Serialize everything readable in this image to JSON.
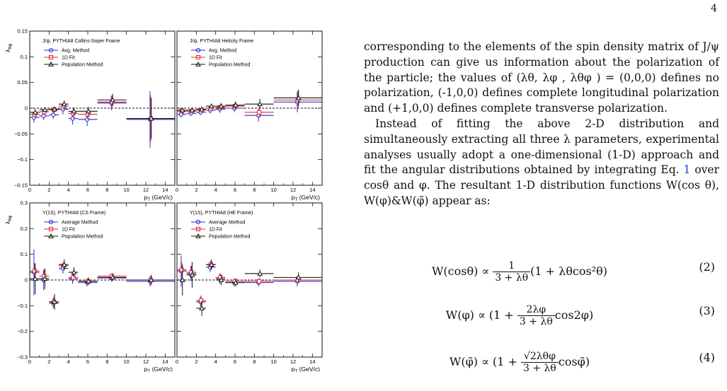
{
  "page_number": "4",
  "figure": {
    "axis": {
      "xlabel": "p",
      "xlabel_sub": "T",
      "xlabel_unit": "(GeV/c)",
      "x_ticks": [
        "0",
        "2",
        "4",
        "6",
        "8",
        "10",
        "12",
        "14"
      ],
      "ylabel": "λ",
      "ylabel_sub": "θφ"
    },
    "marker_colors": {
      "avg": "#1f2bd6",
      "fit": "#e3262d",
      "pop": "#111111"
    },
    "panels": [
      {
        "id": "jpsi-cs",
        "title": "J/ψ, PYTHIA8   Collins-Soper Frame",
        "legend": [
          "Avg. Method",
          "1D Fit",
          "Population Method"
        ],
        "y_ticks": [
          "0.15",
          "0.1",
          "0.05",
          "0",
          "−0.05",
          "−0.1",
          "−0.15"
        ],
        "ylim": [
          -0.15,
          0.15
        ]
      },
      {
        "id": "jpsi-hx",
        "title": "J/ψ, PYTHIA8   Helicity Frame",
        "legend": [
          "Avg. Method",
          "1D Fit",
          "Population Method"
        ],
        "y_ticks": [],
        "ylim": [
          -0.15,
          0.15
        ]
      },
      {
        "id": "ups-cs",
        "title": "Υ(1S), PYTHIA8  (CS Frame)",
        "legend": [
          "Average Method",
          "1D Fit",
          "Population Method"
        ],
        "y_ticks": [
          "0.3",
          "0.2",
          "0.1",
          "0",
          "−0.1",
          "−0.2",
          "−0.3"
        ],
        "ylim": [
          -0.3,
          0.3
        ]
      },
      {
        "id": "ups-he",
        "title": "Υ(1S), PYTHIA8  (HE Frame)",
        "legend": [
          "Average Method",
          "1D Fit",
          "Population Method"
        ],
        "y_ticks": [],
        "ylim": [
          -0.3,
          0.3
        ]
      }
    ]
  },
  "chart_data": [
    {
      "type": "scatter",
      "title": "J/ψ, PYTHIA8   Collins-Soper Frame",
      "xlabel": "pT (GeV/c)",
      "ylabel": "λθφ",
      "xlim": [
        0,
        15
      ],
      "ylim": [
        -0.15,
        0.15
      ],
      "x": [
        0.5,
        1.5,
        2.5,
        3.5,
        4.5,
        6,
        8.5,
        12.5
      ],
      "xerr": [
        0.5,
        0.5,
        0.5,
        0.5,
        0.5,
        1,
        1.5,
        2.5
      ],
      "series": [
        {
          "name": "Avg. Method",
          "y": [
            -0.018,
            -0.015,
            -0.013,
            -0.002,
            -0.02,
            -0.022,
            0.01,
            -0.022
          ],
          "yerr": [
            0.01,
            0.008,
            0.008,
            0.01,
            0.012,
            0.013,
            0.014,
            0.055
          ]
        },
        {
          "name": "1D Fit",
          "y": [
            -0.012,
            -0.007,
            -0.003,
            0.004,
            -0.01,
            -0.012,
            0.012,
            -0.02
          ],
          "yerr": [
            0.007,
            0.006,
            0.006,
            0.008,
            0.01,
            0.011,
            0.013,
            0.045
          ]
        },
        {
          "name": "Population Method",
          "y": [
            -0.008,
            -0.003,
            -0.002,
            0.008,
            -0.006,
            -0.006,
            0.016,
            -0.02
          ],
          "yerr": [
            0.006,
            0.005,
            0.005,
            0.007,
            0.008,
            0.009,
            0.012,
            0.04
          ]
        }
      ]
    },
    {
      "type": "scatter",
      "title": "J/ψ, PYTHIA8   Helicity Frame",
      "xlabel": "pT (GeV/c)",
      "ylabel": "λθφ",
      "xlim": [
        0,
        15
      ],
      "ylim": [
        -0.15,
        0.15
      ],
      "x": [
        0.5,
        1.5,
        2.5,
        3.5,
        4.5,
        6,
        8.5,
        12.5
      ],
      "xerr": [
        0.5,
        0.5,
        0.5,
        0.5,
        0.5,
        1,
        1.5,
        2.5
      ],
      "series": [
        {
          "name": "Avg. Method",
          "y": [
            -0.012,
            -0.01,
            -0.008,
            -0.004,
            -0.002,
            0.0,
            -0.014,
            0.012
          ],
          "yerr": [
            0.006,
            0.005,
            0.005,
            0.006,
            0.007,
            0.008,
            0.012,
            0.02
          ]
        },
        {
          "name": "1D Fit",
          "y": [
            -0.006,
            -0.006,
            -0.004,
            0.0,
            0.002,
            0.004,
            -0.008,
            0.016
          ],
          "yerr": [
            0.005,
            0.004,
            0.004,
            0.005,
            0.006,
            0.007,
            0.01,
            0.018
          ]
        },
        {
          "name": "Population Method",
          "y": [
            -0.004,
            -0.004,
            -0.002,
            0.004,
            0.004,
            0.006,
            0.008,
            0.02
          ],
          "yerr": [
            0.005,
            0.004,
            0.004,
            0.005,
            0.006,
            0.007,
            0.01,
            0.016
          ]
        }
      ]
    },
    {
      "type": "scatter",
      "title": "Υ(1S), PYTHIA8  (CS Frame)",
      "xlabel": "pT (GeV/c)",
      "ylabel": "λθφ",
      "xlim": [
        0,
        15
      ],
      "ylim": [
        -0.3,
        0.3
      ],
      "x": [
        0.5,
        1.5,
        2.5,
        3.5,
        4.5,
        6,
        8.5,
        12.5
      ],
      "xerr": [
        0.5,
        0.5,
        0.5,
        0.5,
        0.5,
        1,
        1.5,
        2.5
      ],
      "series": [
        {
          "name": "Average Method",
          "y": [
            0.03,
            0.0,
            -0.09,
            0.045,
            0.005,
            -0.01,
            0.008,
            -0.005
          ],
          "yerr": [
            0.09,
            0.04,
            0.02,
            0.02,
            0.02,
            0.015,
            0.015,
            0.02
          ]
        },
        {
          "name": "1D Fit",
          "y": [
            0.035,
            0.015,
            -0.085,
            0.055,
            0.01,
            -0.005,
            0.015,
            0.0
          ],
          "yerr": [
            0.03,
            0.025,
            0.02,
            0.015,
            0.015,
            0.012,
            0.012,
            0.015
          ]
        },
        {
          "name": "Population Method",
          "y": [
            0.005,
            0.005,
            -0.085,
            0.06,
            0.03,
            -0.005,
            0.01,
            0.0
          ],
          "yerr": [
            0.06,
            0.04,
            0.03,
            0.02,
            0.02,
            0.015,
            0.015,
            0.02
          ]
        }
      ]
    },
    {
      "type": "scatter",
      "title": "Υ(1S), PYTHIA8  (HE Frame)",
      "xlabel": "pT (GeV/c)",
      "ylabel": "λθφ",
      "xlim": [
        0,
        15
      ],
      "ylim": [
        -0.3,
        0.3
      ],
      "x": [
        0.5,
        1.5,
        2.5,
        3.5,
        4.5,
        6,
        8.5,
        12.5
      ],
      "xerr": [
        0.5,
        0.5,
        0.5,
        0.5,
        0.5,
        1,
        1.5,
        2.5
      ],
      "series": [
        {
          "name": "Average Method",
          "y": [
            0.035,
            0.025,
            -0.085,
            0.05,
            0.005,
            -0.01,
            -0.01,
            -0.005
          ],
          "yerr": [
            0.06,
            0.03,
            0.02,
            0.02,
            0.02,
            0.015,
            0.015,
            0.02
          ]
        },
        {
          "name": "1D Fit",
          "y": [
            0.04,
            0.03,
            -0.08,
            0.06,
            0.01,
            -0.005,
            -0.005,
            0.0
          ],
          "yerr": [
            0.03,
            0.025,
            0.02,
            0.015,
            0.015,
            0.012,
            0.012,
            0.015
          ]
        },
        {
          "name": "Population Method",
          "y": [
            0.0,
            0.02,
            -0.11,
            0.06,
            0.0,
            -0.01,
            0.025,
            0.01
          ],
          "yerr": [
            0.06,
            0.05,
            0.03,
            0.02,
            0.02,
            0.015,
            0.015,
            0.02
          ]
        }
      ]
    }
  ],
  "text": {
    "p1": "corresponding to the elements of the spin density matrix of J/ψ production can give us information about the polarization of the particle; the values of (λθ, λφ , λθφ ) = (0,0,0) defines no polarization, (-1,0,0) defines complete longitudinal polarization and (+1,0,0) defines complete transverse polarization.",
    "p2_a": "Instead of fitting the above 2-D distribution and simultaneously extracting all three λ parameters, experimental analyses usually adopt a one-dimensional (1-D) approach and fit the angular distributions obtained by integrating Eq. ",
    "p2_ref": "1",
    "p2_b": " over cosθ and φ. The resultant 1-D distribution functions W(cos θ), W(φ)&W(φ̃) appear as:"
  },
  "equations": [
    {
      "lhs": "W(cosθ) ∝ ",
      "frac_num": "1",
      "frac_den": "3 + λθ",
      "rhs": "(1 + λθcos²θ)",
      "number": "(2)"
    },
    {
      "lhs": "W(φ) ∝ (1 + ",
      "frac_num": "2λφ",
      "frac_den": "3 + λθ",
      "rhs": "cos2φ)",
      "number": "(3)"
    },
    {
      "lhs": "W(φ̃) ∝ (1 + ",
      "frac_num": "√2λθφ",
      "frac_den": "3 + λθ",
      "rhs": "cosφ̃)",
      "number": "(4)"
    }
  ]
}
